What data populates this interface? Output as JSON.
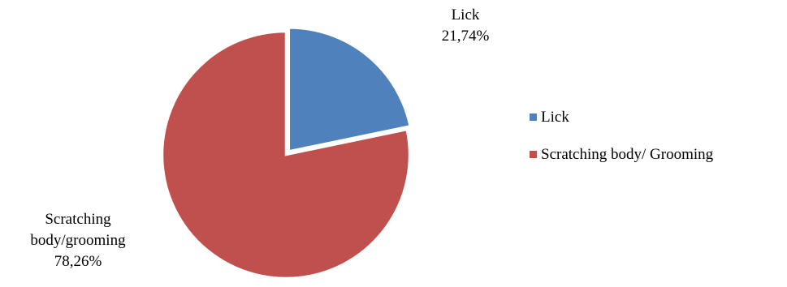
{
  "chart_data": {
    "type": "pie",
    "title": "",
    "slices": [
      {
        "label": "Lick",
        "legend": "Lick",
        "data_label": [
          "Lick",
          "21,74%"
        ],
        "value": 21.74,
        "color": "#4f81bd"
      },
      {
        "label": "Scratching body/grooming",
        "legend": "Scratching body/ Grooming",
        "data_label": [
          "Scratching",
          "body/grooming",
          "78,26%"
        ],
        "value": 78.26,
        "color": "#c0504d"
      }
    ],
    "legend_position": "right"
  }
}
